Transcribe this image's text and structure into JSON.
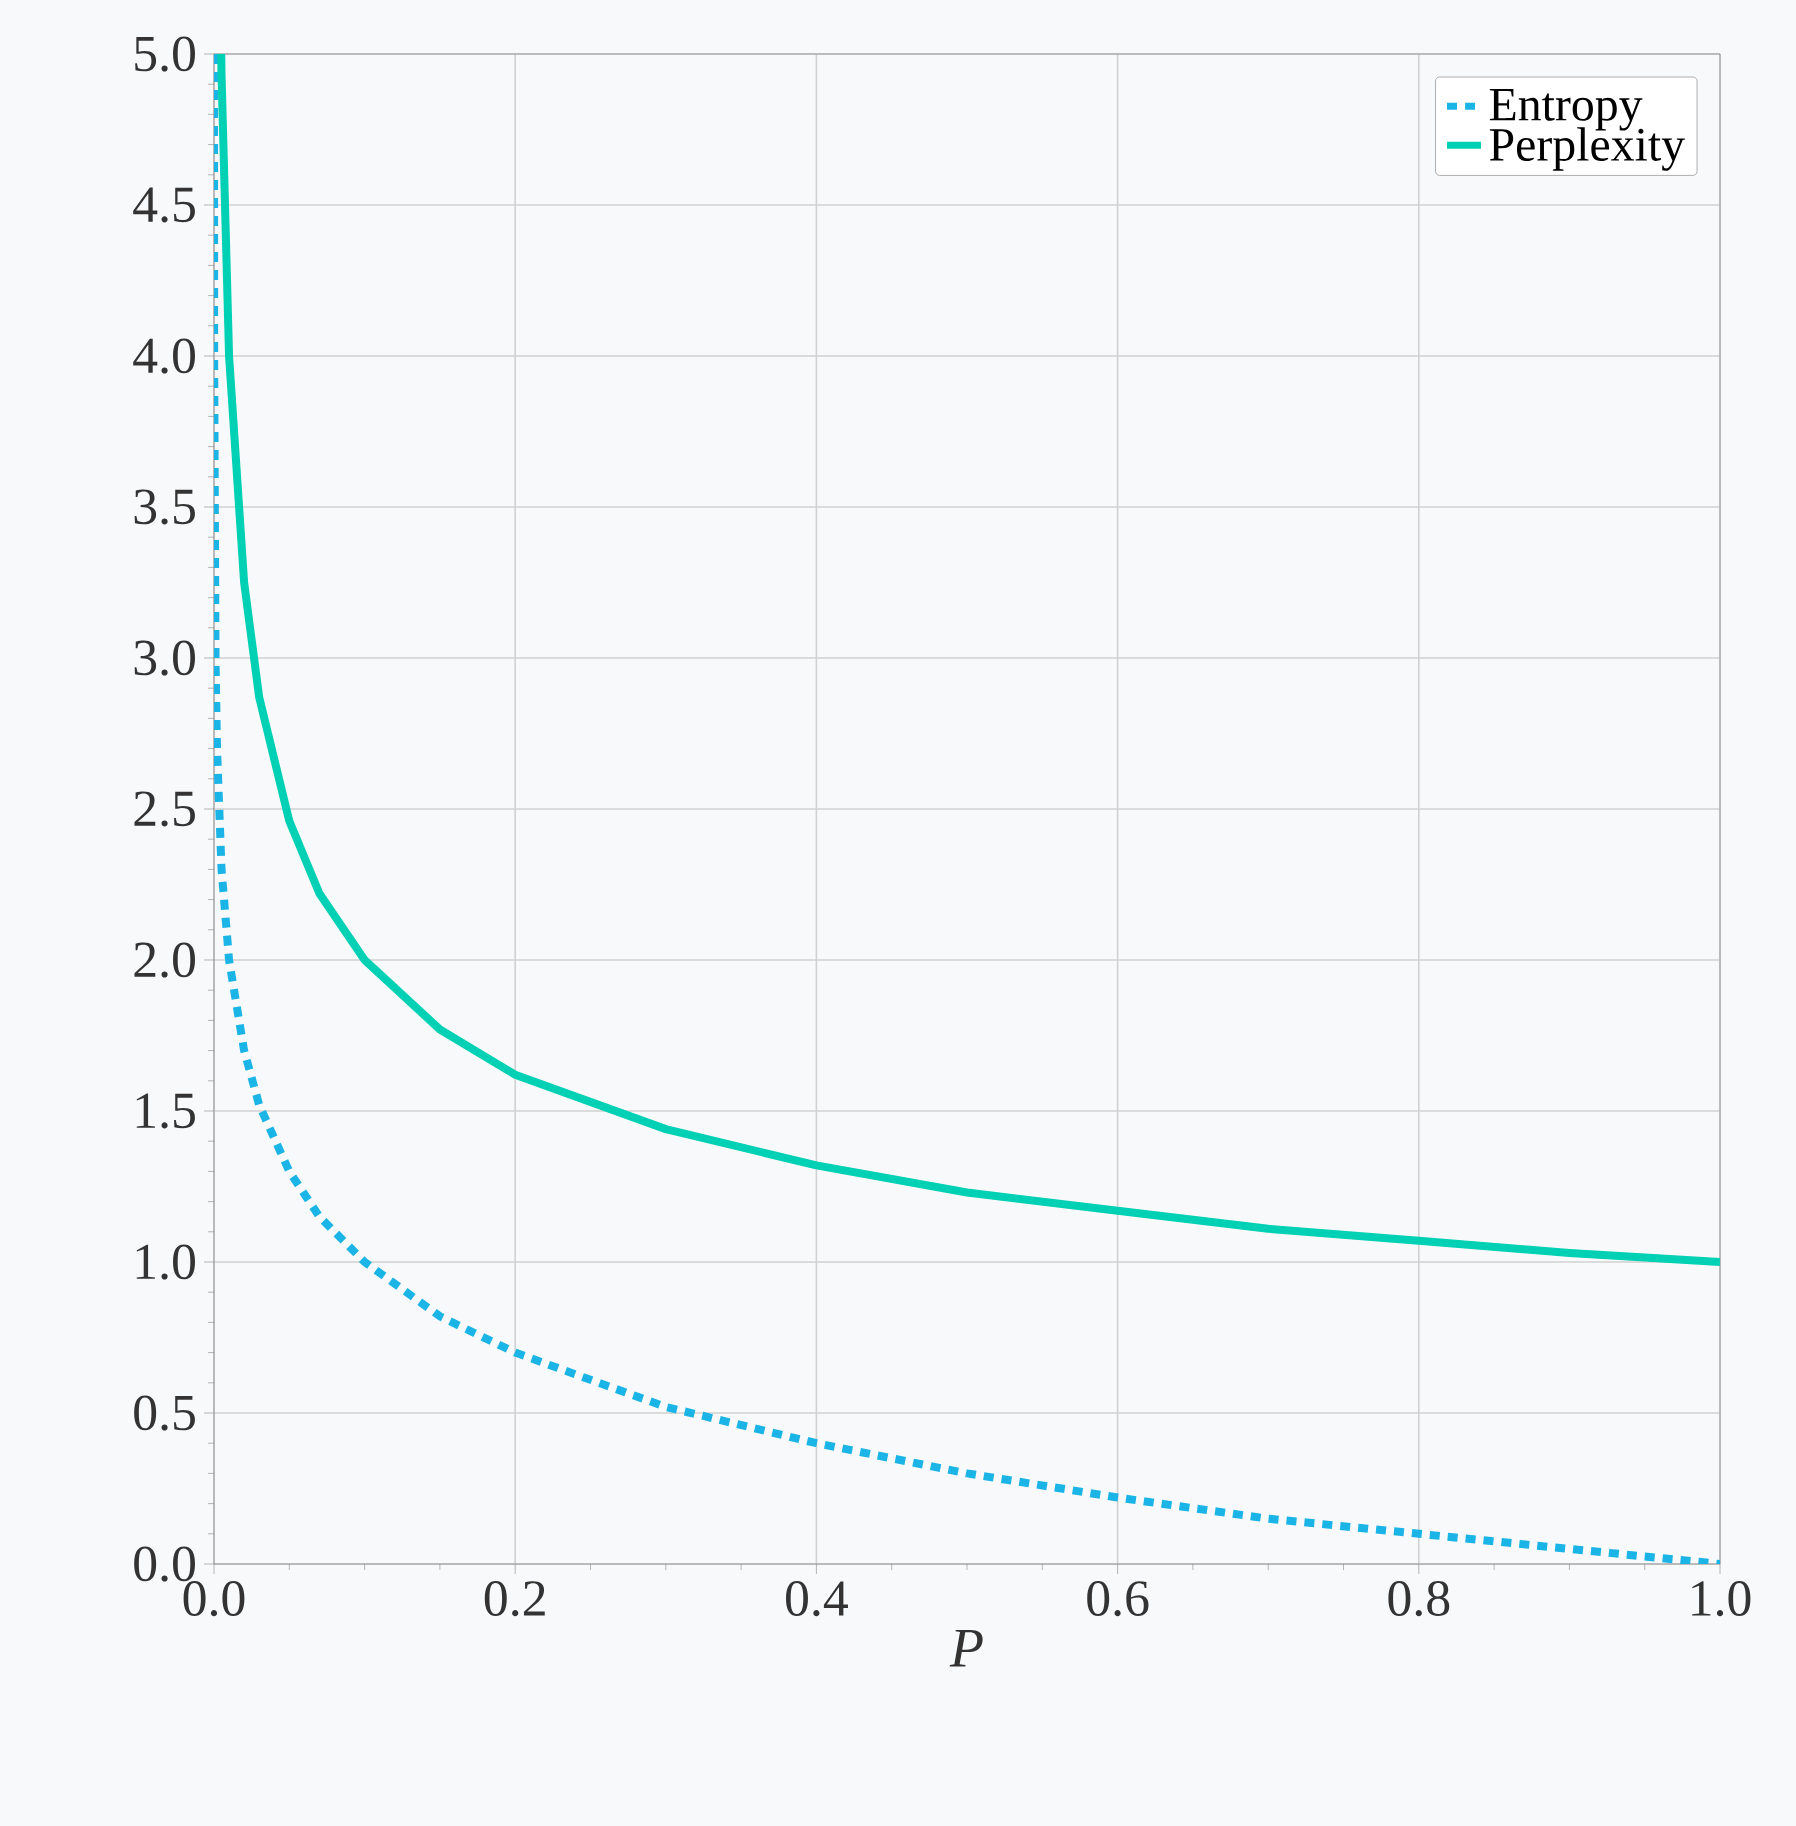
{
  "chart_data": {
    "type": "line",
    "xlabel": "P",
    "series": [
      {
        "name": "Entropy",
        "color": "#1ab4e6",
        "line_style": "dotted",
        "x": [
          1e-05,
          0.0001,
          0.001,
          0.002,
          0.005,
          0.01,
          0.02,
          0.03,
          0.05,
          0.07,
          0.1,
          0.15,
          0.2,
          0.3,
          0.4,
          0.5,
          0.6,
          0.7,
          0.8,
          0.9,
          1.0
        ],
        "values": [
          5.0,
          4.0,
          3.0,
          2.7,
          2.3,
          2.0,
          1.7,
          1.52,
          1.3,
          1.15,
          1.0,
          0.82,
          0.7,
          0.52,
          0.4,
          0.3,
          0.22,
          0.15,
          0.1,
          0.05,
          0.0
        ]
      },
      {
        "name": "Perplexity",
        "color": "#00d0b4",
        "line_style": "solid",
        "x": [
          0.0048,
          0.005,
          0.01,
          0.02,
          0.03,
          0.05,
          0.07,
          0.1,
          0.15,
          0.2,
          0.3,
          0.4,
          0.5,
          0.6,
          0.7,
          0.8,
          0.9,
          1.0
        ],
        "values": [
          5.0,
          4.93,
          4.0,
          3.25,
          2.87,
          2.46,
          2.22,
          2.0,
          1.77,
          1.62,
          1.44,
          1.32,
          1.23,
          1.17,
          1.11,
          1.07,
          1.03,
          1.0
        ]
      }
    ],
    "xlim": [
      0,
      1
    ],
    "ylim": [
      0,
      5
    ],
    "xticks": [
      {
        "value": 0,
        "label": "0.0"
      },
      0.2,
      0.4,
      0.6,
      0.8,
      {
        "value": 1,
        "label": "1.0"
      }
    ],
    "yticks": [
      {
        "value": 0,
        "label": "0.0"
      },
      0.5,
      {
        "value": 1,
        "label": "1.0"
      },
      1.5,
      {
        "value": 2,
        "label": "2.0"
      },
      2.5,
      {
        "value": 3,
        "label": "3.0"
      },
      3.5,
      {
        "value": 4,
        "label": "4.0"
      },
      4.5,
      {
        "value": 5,
        "label": "5.0"
      }
    ],
    "grid": true,
    "legend": "top right",
    "marker": "none"
  }
}
